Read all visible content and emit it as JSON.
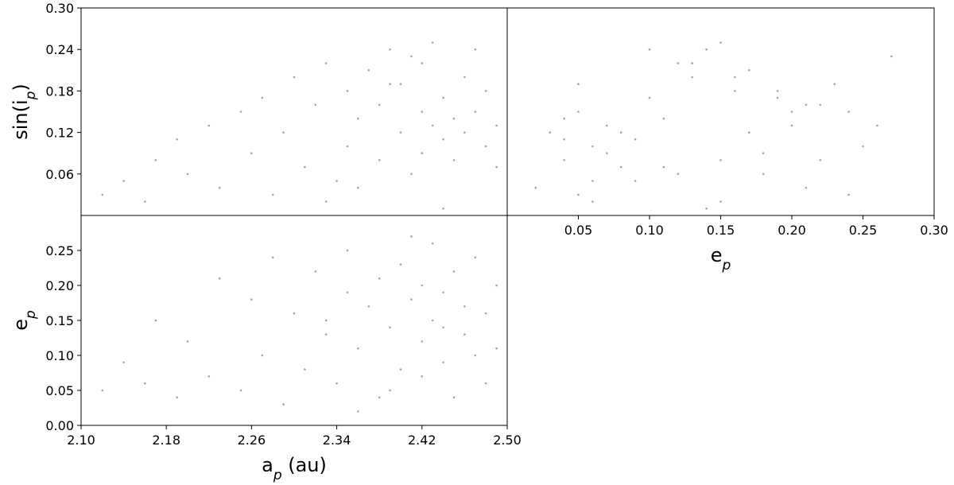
{
  "chart_data": [
    {
      "type": "scatter",
      "color": "#8c8c8c",
      "x": [
        2.12,
        2.14,
        2.16,
        2.17,
        2.19,
        2.2,
        2.22,
        2.23,
        2.25,
        2.26,
        2.27,
        2.28,
        2.29,
        2.3,
        2.31,
        2.32,
        2.33,
        2.34,
        2.35,
        2.35,
        2.36,
        2.37,
        2.38,
        2.38,
        2.39,
        2.4,
        2.4,
        2.41,
        2.42,
        2.42,
        2.42,
        2.43,
        2.43,
        2.44,
        2.44,
        2.45,
        2.45,
        2.46,
        2.46,
        2.47,
        2.47,
        2.48,
        2.48,
        2.49,
        2.49,
        2.36,
        2.41,
        2.33,
        2.39,
        2.44
      ],
      "y": [
        0.03,
        0.05,
        0.02,
        0.08,
        0.11,
        0.06,
        0.13,
        0.04,
        0.15,
        0.09,
        0.17,
        0.03,
        0.12,
        0.2,
        0.07,
        0.16,
        0.22,
        0.05,
        0.18,
        0.1,
        0.14,
        0.21,
        0.08,
        0.16,
        0.24,
        0.12,
        0.19,
        0.06,
        0.15,
        0.22,
        0.09,
        0.13,
        0.25,
        0.11,
        0.17,
        0.14,
        0.08,
        0.2,
        0.12,
        0.24,
        0.15,
        0.1,
        0.18,
        0.07,
        0.13,
        0.04,
        0.23,
        0.02,
        0.19,
        0.01
      ],
      "xlim": [
        2.1,
        2.5
      ],
      "ylim": [
        0,
        0.3
      ],
      "yticks": [
        0.06,
        0.12,
        0.18,
        0.24,
        {
          "value": 0.3,
          "label": "0.30"
        }
      ],
      "ylabel": [
        "sin(i",
        "p",
        ")"
      ]
    },
    {
      "type": "scatter",
      "color": "#8c8c8c",
      "x": [
        0.05,
        0.09,
        0.06,
        0.15,
        0.04,
        0.12,
        0.07,
        0.21,
        0.05,
        0.18,
        0.1,
        0.24,
        0.03,
        0.16,
        0.08,
        0.22,
        0.13,
        0.06,
        0.19,
        0.25,
        0.11,
        0.17,
        0.04,
        0.21,
        0.14,
        0.08,
        0.23,
        0.18,
        0.2,
        0.12,
        0.07,
        0.26,
        0.15,
        0.09,
        0.19,
        0.04,
        0.22,
        0.13,
        0.17,
        0.1,
        0.24,
        0.06,
        0.16,
        0.11,
        0.2,
        0.02,
        0.27,
        0.15,
        0.05,
        0.14
      ],
      "y": [
        0.03,
        0.05,
        0.02,
        0.08,
        0.11,
        0.06,
        0.13,
        0.04,
        0.15,
        0.09,
        0.17,
        0.03,
        0.12,
        0.2,
        0.07,
        0.16,
        0.22,
        0.05,
        0.18,
        0.1,
        0.14,
        0.21,
        0.08,
        0.16,
        0.24,
        0.12,
        0.19,
        0.06,
        0.15,
        0.22,
        0.09,
        0.13,
        0.25,
        0.11,
        0.17,
        0.14,
        0.08,
        0.2,
        0.12,
        0.24,
        0.15,
        0.1,
        0.18,
        0.07,
        0.13,
        0.04,
        0.23,
        0.02,
        0.19,
        0.01
      ],
      "xlim": [
        0,
        0.3
      ],
      "ylim": [
        0,
        0.3
      ],
      "xticks": [
        0.05,
        {
          "value": 0.1,
          "label": "0.10"
        },
        0.15,
        {
          "value": 0.2,
          "label": "0.20"
        },
        0.25,
        {
          "value": 0.3,
          "label": "0.30"
        }
      ],
      "xlabel": [
        "e",
        "p"
      ]
    },
    {
      "type": "scatter",
      "color": "#8c8c8c",
      "x": [
        2.12,
        2.14,
        2.16,
        2.17,
        2.19,
        2.2,
        2.22,
        2.23,
        2.25,
        2.26,
        2.27,
        2.28,
        2.29,
        2.3,
        2.31,
        2.32,
        2.33,
        2.34,
        2.35,
        2.35,
        2.36,
        2.37,
        2.38,
        2.38,
        2.39,
        2.4,
        2.4,
        2.41,
        2.42,
        2.42,
        2.42,
        2.43,
        2.43,
        2.44,
        2.44,
        2.45,
        2.45,
        2.46,
        2.46,
        2.47,
        2.47,
        2.48,
        2.48,
        2.49,
        2.49,
        2.36,
        2.41,
        2.33,
        2.39,
        2.44
      ],
      "y": [
        0.05,
        0.09,
        0.06,
        0.15,
        0.04,
        0.12,
        0.07,
        0.21,
        0.05,
        0.18,
        0.1,
        0.24,
        0.03,
        0.16,
        0.08,
        0.22,
        0.13,
        0.06,
        0.19,
        0.25,
        0.11,
        0.17,
        0.04,
        0.21,
        0.14,
        0.08,
        0.23,
        0.18,
        0.2,
        0.12,
        0.07,
        0.26,
        0.15,
        0.09,
        0.19,
        0.04,
        0.22,
        0.13,
        0.17,
        0.1,
        0.24,
        0.06,
        0.16,
        0.11,
        0.2,
        0.02,
        0.27,
        0.15,
        0.05,
        0.14
      ],
      "xlim": [
        2.1,
        2.5
      ],
      "ylim": [
        0,
        0.3
      ],
      "xticks": [
        {
          "value": 2.1,
          "label": "2.10"
        },
        2.18,
        2.26,
        2.34,
        2.42,
        {
          "value": 2.5,
          "label": "2.50"
        }
      ],
      "yticks": [
        {
          "value": 0,
          "label": "0.00"
        },
        0.05,
        {
          "value": 0.1,
          "label": "0.10"
        },
        0.15,
        {
          "value": 0.2,
          "label": "0.20"
        },
        0.25
      ],
      "xlabel": [
        "a",
        "p",
        " (au)"
      ],
      "ylabel": [
        "e",
        "p"
      ]
    }
  ]
}
